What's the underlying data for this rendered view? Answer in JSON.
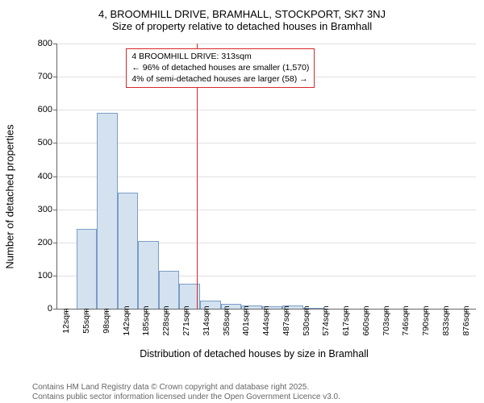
{
  "title_line1": "4, BROOMHILL DRIVE, BRAMHALL, STOCKPORT, SK7 3NJ",
  "title_line2": "Size of property relative to detached houses in Bramhall",
  "y_axis_label": "Number of detached properties",
  "x_axis_label": "Distribution of detached houses by size in Bramhall",
  "chart": {
    "type": "histogram",
    "bar_fill": "#d4e2f0",
    "bar_border": "#7a9dc4",
    "grid_color": "#e0e0e0",
    "axis_color": "#666666",
    "ylim": [
      0,
      800
    ],
    "ytick_step": 100,
    "x_labels": [
      "12sqm",
      "55sqm",
      "98sqm",
      "142sqm",
      "185sqm",
      "228sqm",
      "271sqm",
      "314sqm",
      "358sqm",
      "401sqm",
      "444sqm",
      "487sqm",
      "530sqm",
      "574sqm",
      "617sqm",
      "660sqm",
      "703sqm",
      "746sqm",
      "790sqm",
      "833sqm",
      "876sqm"
    ],
    "values": [
      0,
      240,
      592,
      350,
      205,
      115,
      75,
      25,
      15,
      10,
      8,
      10,
      2,
      0,
      0,
      0,
      0,
      0,
      0,
      0,
      0
    ]
  },
  "threshold": {
    "color": "#d62728",
    "bin_index": 7,
    "box": {
      "line1": "4 BROOMHILL DRIVE: 313sqm",
      "line2": "← 96% of detached houses are smaller (1,570)",
      "line3": "4% of semi-detached houses are larger (58) →"
    }
  },
  "footer_line1": "Contains HM Land Registry data © Crown copyright and database right 2025.",
  "footer_line2": "Contains public sector information licensed under the Open Government Licence v3.0."
}
